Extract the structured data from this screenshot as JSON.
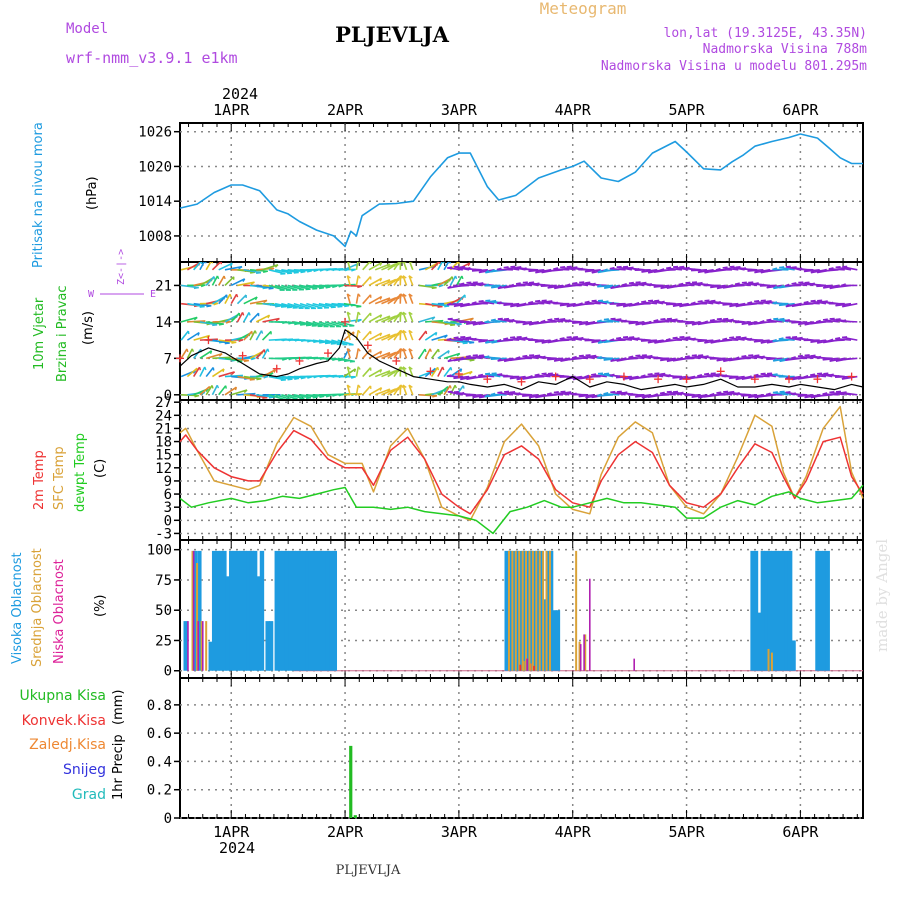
{
  "header": {
    "model_label": "Model",
    "model_name": "wrf-nmm_v3.9.1  e1km",
    "station": "PLJEVLJA",
    "product": "Meteogram",
    "coords": "lon,lat (19.3125E, 43.35N)",
    "elevation": "Nadmorska Visina 788m",
    "model_elevation": "Nadmorska Visina u modelu 801.295m",
    "footer_station": "PLJEVLJA",
    "credit": "made by Angel"
  },
  "colors": {
    "pressure": "#1e9be0",
    "t2m": "#ee3333",
    "sfc": "#d9a238",
    "dewpt": "#22cc22",
    "cloud_high": "#1e9be0",
    "cloud_mid": "#d9a238",
    "cloud_low": "#b020b0",
    "precip_total": "#22bb22",
    "precip_conv": "#ee3333",
    "precip_frz": "#ee8833",
    "precip_snow": "#3333dd",
    "precip_grad": "#22bbbb",
    "wind_purple": "#8822cc",
    "axis": "#000000",
    "grid": "#888888"
  },
  "chart_data": [
    {
      "type": "line",
      "panel": "pressure",
      "ylabel_main": "Pritisak na nivou mora",
      "ylabel_unit": "(hPa)",
      "year_label": "2024",
      "x_ticks": [
        "1APR",
        "2APR",
        "3APR",
        "4APR",
        "5APR",
        "6APR"
      ],
      "y_ticks": [
        1008,
        1014,
        1020,
        1026
      ],
      "ylim": [
        1003.5,
        1027.5
      ],
      "xlim_days": [
        -0.45,
        5.55
      ],
      "series": [
        {
          "x": [
            -0.45,
            -0.3,
            -0.15,
            0,
            0.1,
            0.25,
            0.4,
            0.5,
            0.6,
            0.75,
            0.9,
            1.0,
            1.05,
            1.1,
            1.15,
            1.3,
            1.45,
            1.6,
            1.75,
            1.9,
            2.0,
            2.1,
            2.25,
            2.35,
            2.5,
            2.7,
            2.9,
            3.0,
            3.1,
            3.25,
            3.4,
            3.55,
            3.7,
            3.9,
            4.0,
            4.15,
            4.3,
            4.4,
            4.5,
            4.6,
            4.75,
            4.9,
            5.0,
            5.15,
            5.25,
            5.35,
            5.45,
            5.55
          ],
          "y": [
            1012.8,
            1013.5,
            1015.5,
            1016.8,
            1016.8,
            1015.8,
            1012.5,
            1011.8,
            1010.5,
            1009.0,
            1008.0,
            1006.2,
            1008.8,
            1008.0,
            1011.5,
            1013.5,
            1013.6,
            1014.0,
            1018.2,
            1021.5,
            1022.3,
            1022.3,
            1016.5,
            1014.2,
            1015.0,
            1018.0,
            1019.4,
            1020.0,
            1020.9,
            1018.0,
            1017.4,
            1019.0,
            1022.3,
            1024.3,
            1022.5,
            1019.6,
            1019.4,
            1020.8,
            1022.0,
            1023.5,
            1024.3,
            1025.0,
            1025.6,
            1024.9,
            1023.2,
            1021.5,
            1020.5,
            1020.5
          ]
        }
      ]
    },
    {
      "type": "line",
      "panel": "wind",
      "ylabel_main": "10m Vjetar",
      "ylabel_main2": "Brzina i Pravac",
      "ylabel_unit": "(m/s)",
      "compass_labels": [
        "Z",
        "W",
        "E"
      ],
      "y_ticks": [
        0,
        7,
        14,
        21
      ],
      "ylim": [
        -1,
        25.5
      ],
      "series": [
        {
          "name": "speed",
          "x": [
            -0.45,
            -0.35,
            -0.2,
            -0.05,
            0.1,
            0.25,
            0.4,
            0.5,
            0.6,
            0.75,
            0.85,
            0.95,
            1.0,
            1.1,
            1.2,
            1.3,
            1.45,
            1.6,
            1.75,
            1.9,
            2.0,
            2.1,
            2.25,
            2.4,
            2.55,
            2.7,
            2.85,
            3.0,
            3.15,
            3.3,
            3.45,
            3.6,
            3.75,
            3.9,
            4.0,
            4.15,
            4.3,
            4.45,
            4.6,
            4.75,
            4.9,
            5.0,
            5.15,
            5.3,
            5.45,
            5.55
          ],
          "y": [
            5.5,
            7.5,
            9,
            8,
            6,
            4,
            3.5,
            4,
            5,
            6,
            6.5,
            9,
            12.5,
            11,
            8,
            6.5,
            5,
            3.5,
            3,
            2.5,
            2.5,
            2,
            1.5,
            2,
            1,
            2.5,
            2,
            3.5,
            1.5,
            2.5,
            2,
            1,
            1.5,
            2,
            1.5,
            2,
            3,
            1.5,
            1.5,
            2,
            1.5,
            2,
            1.5,
            1,
            2,
            1.5
          ]
        }
      ]
    },
    {
      "type": "line",
      "panel": "temperature",
      "ylabel_t2m": "2m Temp",
      "ylabel_sfc": "SFC Temp",
      "ylabel_dew": "dewpt Temp",
      "ylabel_unit": "(C)",
      "y_ticks": [
        -3,
        0,
        3,
        6,
        9,
        12,
        15,
        18,
        21,
        24,
        27
      ],
      "ylim": [
        -4.5,
        27.5
      ],
      "series": [
        {
          "name": "2m Temp",
          "x": [
            -0.45,
            -0.4,
            -0.3,
            -0.15,
            0,
            0.15,
            0.25,
            0.4,
            0.55,
            0.7,
            0.85,
            1.0,
            1.15,
            1.25,
            1.4,
            1.55,
            1.7,
            1.85,
            2.0,
            2.1,
            2.25,
            2.4,
            2.55,
            2.7,
            2.85,
            3.0,
            3.15,
            3.25,
            3.4,
            3.55,
            3.7,
            3.85,
            4.0,
            4.15,
            4.3,
            4.45,
            4.6,
            4.75,
            4.85,
            4.95,
            5.05,
            5.2,
            5.35,
            5.45,
            5.55
          ],
          "y": [
            18,
            19.5,
            16,
            12,
            10,
            9,
            9,
            15.5,
            20.5,
            18.5,
            14,
            12,
            12,
            8,
            16,
            19,
            14,
            6,
            3,
            1.5,
            7,
            15,
            17,
            14,
            7,
            4,
            3,
            9,
            15,
            18,
            15.5,
            8,
            4,
            3,
            6,
            12,
            17.5,
            15.5,
            10,
            5,
            9,
            18,
            19,
            10,
            6
          ]
        },
        {
          "name": "SFC Temp",
          "x": [
            -0.45,
            -0.4,
            -0.3,
            -0.15,
            0,
            0.15,
            0.25,
            0.4,
            0.55,
            0.7,
            0.85,
            1.0,
            1.15,
            1.25,
            1.4,
            1.55,
            1.7,
            1.85,
            2.0,
            2.1,
            2.25,
            2.4,
            2.55,
            2.7,
            2.85,
            3.0,
            3.15,
            3.25,
            3.4,
            3.55,
            3.7,
            3.85,
            4.0,
            4.15,
            4.3,
            4.45,
            4.6,
            4.75,
            4.85,
            4.95,
            5.05,
            5.2,
            5.35,
            5.45,
            5.55
          ],
          "y": [
            20,
            21,
            16,
            9,
            8,
            7,
            8,
            17.5,
            23.5,
            21.5,
            15,
            13,
            13,
            6.5,
            17,
            21,
            14,
            3,
            1,
            0,
            7.5,
            18,
            22,
            17,
            6,
            2.5,
            1.5,
            10.5,
            19,
            22.5,
            20,
            8,
            3,
            1.5,
            6,
            14.5,
            24,
            21.5,
            11,
            5,
            10,
            21,
            26,
            11,
            5
          ]
        },
        {
          "name": "dewpt Temp",
          "x": [
            -0.45,
            -0.35,
            -0.2,
            0,
            0.15,
            0.3,
            0.45,
            0.6,
            0.75,
            0.9,
            1.0,
            1.1,
            1.25,
            1.4,
            1.55,
            1.7,
            1.85,
            2.0,
            2.15,
            2.3,
            2.45,
            2.6,
            2.75,
            2.9,
            3.0,
            3.15,
            3.3,
            3.45,
            3.6,
            3.75,
            3.9,
            4.0,
            4.15,
            4.3,
            4.45,
            4.6,
            4.75,
            4.9,
            5.0,
            5.15,
            5.3,
            5.45,
            5.55
          ],
          "y": [
            5,
            3,
            4,
            5,
            4,
            4.5,
            5.5,
            5,
            6,
            7,
            7.5,
            3,
            3,
            2.5,
            3,
            2,
            1.5,
            1,
            0,
            -3,
            2,
            3,
            4.5,
            3,
            3,
            4,
            5,
            4,
            4,
            3.5,
            3,
            0.5,
            0.5,
            3,
            4.5,
            3.5,
            5.5,
            6.5,
            5,
            4,
            4.5,
            5,
            8
          ]
        }
      ]
    },
    {
      "type": "bar",
      "panel": "cloud",
      "ylabel_high": "Visoka Oblacnost",
      "ylabel_mid": "Srednja Oblacnost",
      "ylabel_low": "Niska Oblacnost",
      "ylabel_unit": "(%)",
      "y_ticks": [
        0,
        25,
        50,
        75,
        100
      ],
      "ylim": [
        -6,
        108
      ],
      "series": [
        {
          "name": "Visoka Oblacnost",
          "x": [
            -0.4,
            -0.32,
            -0.28,
            -0.18,
            -0.15,
            -0.12,
            -0.09,
            -0.06,
            -0.03,
            0.0,
            0.03,
            0.06,
            0.09,
            0.12,
            0.15,
            0.18,
            0.21,
            0.24,
            0.27,
            0.32,
            0.35,
            0.4,
            0.43,
            0.46,
            0.49,
            0.52,
            0.55,
            0.58,
            0.61,
            0.64,
            0.67,
            0.7,
            0.73,
            0.76,
            0.79,
            0.82,
            0.85,
            0.88,
            0.91,
            2.42,
            2.45,
            2.48,
            2.51,
            2.54,
            2.57,
            2.6,
            2.63,
            2.66,
            2.69,
            2.72,
            2.75,
            2.78,
            2.81,
            2.84,
            2.87,
            2.91,
            4.58,
            4.61,
            4.64,
            4.67,
            4.7,
            4.73,
            4.76,
            4.79,
            4.82,
            4.85,
            4.88,
            4.91,
            4.94,
            4.97,
            5.0,
            5.03,
            5.06,
            5.09,
            5.12,
            5.15,
            5.18,
            5.21,
            5.24
          ],
          "values": [
            41,
            99,
            99,
            24,
            99,
            99,
            99,
            99,
            78,
            99,
            99,
            99,
            99,
            99,
            99,
            99,
            99,
            78,
            99,
            41,
            41,
            99,
            99,
            99,
            99,
            99,
            99,
            99,
            99,
            99,
            99,
            99,
            99,
            99,
            99,
            99,
            99,
            99,
            99,
            99,
            99,
            99,
            99,
            99,
            99,
            99,
            99,
            99,
            99,
            99,
            59,
            99,
            99,
            50,
            50,
            0,
            99,
            99,
            48,
            99,
            99,
            99,
            99,
            99,
            99,
            99,
            99,
            99,
            25,
            0,
            0,
            0,
            0,
            0,
            0,
            99,
            99,
            99,
            99
          ]
        },
        {
          "name": "Srednja Oblacnost",
          "x": [
            -0.34,
            -0.3,
            -0.26,
            -0.22,
            2.44,
            2.47,
            2.5,
            2.53,
            2.56,
            2.59,
            2.62,
            2.65,
            2.68,
            2.71,
            2.74,
            2.77,
            2.8,
            2.83,
            3.03,
            3.06,
            3.11,
            4.72,
            4.75,
            4.78
          ],
          "values": [
            99,
            89,
            41,
            41,
            99,
            99,
            99,
            99,
            99,
            99,
            99,
            99,
            99,
            99,
            99,
            99,
            99,
            0,
            99,
            24,
            30,
            18,
            15,
            0
          ]
        },
        {
          "name": "Niska Oblacnost",
          "x": [
            -0.38,
            -0.33,
            -0.29,
            -0.25,
            3.07,
            3.1,
            3.15,
            3.54
          ],
          "values": [
            41,
            99,
            41,
            41,
            22,
            30,
            76,
            10
          ]
        }
      ]
    },
    {
      "type": "bar",
      "panel": "precip",
      "legend": [
        "Ukupna  Kisa",
        "Konvek.Kisa",
        "Zaledj.Kisa",
        "Snijeg",
        "Grad"
      ],
      "ylabel_main": "1hr Precip",
      "ylabel_unit": "(mm)",
      "y_ticks": [
        0,
        0.2,
        0.4,
        0.6,
        0.8
      ],
      "ylim": [
        0,
        0.99
      ],
      "series": [
        {
          "name": "Ukupna  Kisa",
          "x": [
            1.05,
            1.09
          ],
          "values": [
            0.51,
            0.02
          ]
        }
      ]
    }
  ]
}
